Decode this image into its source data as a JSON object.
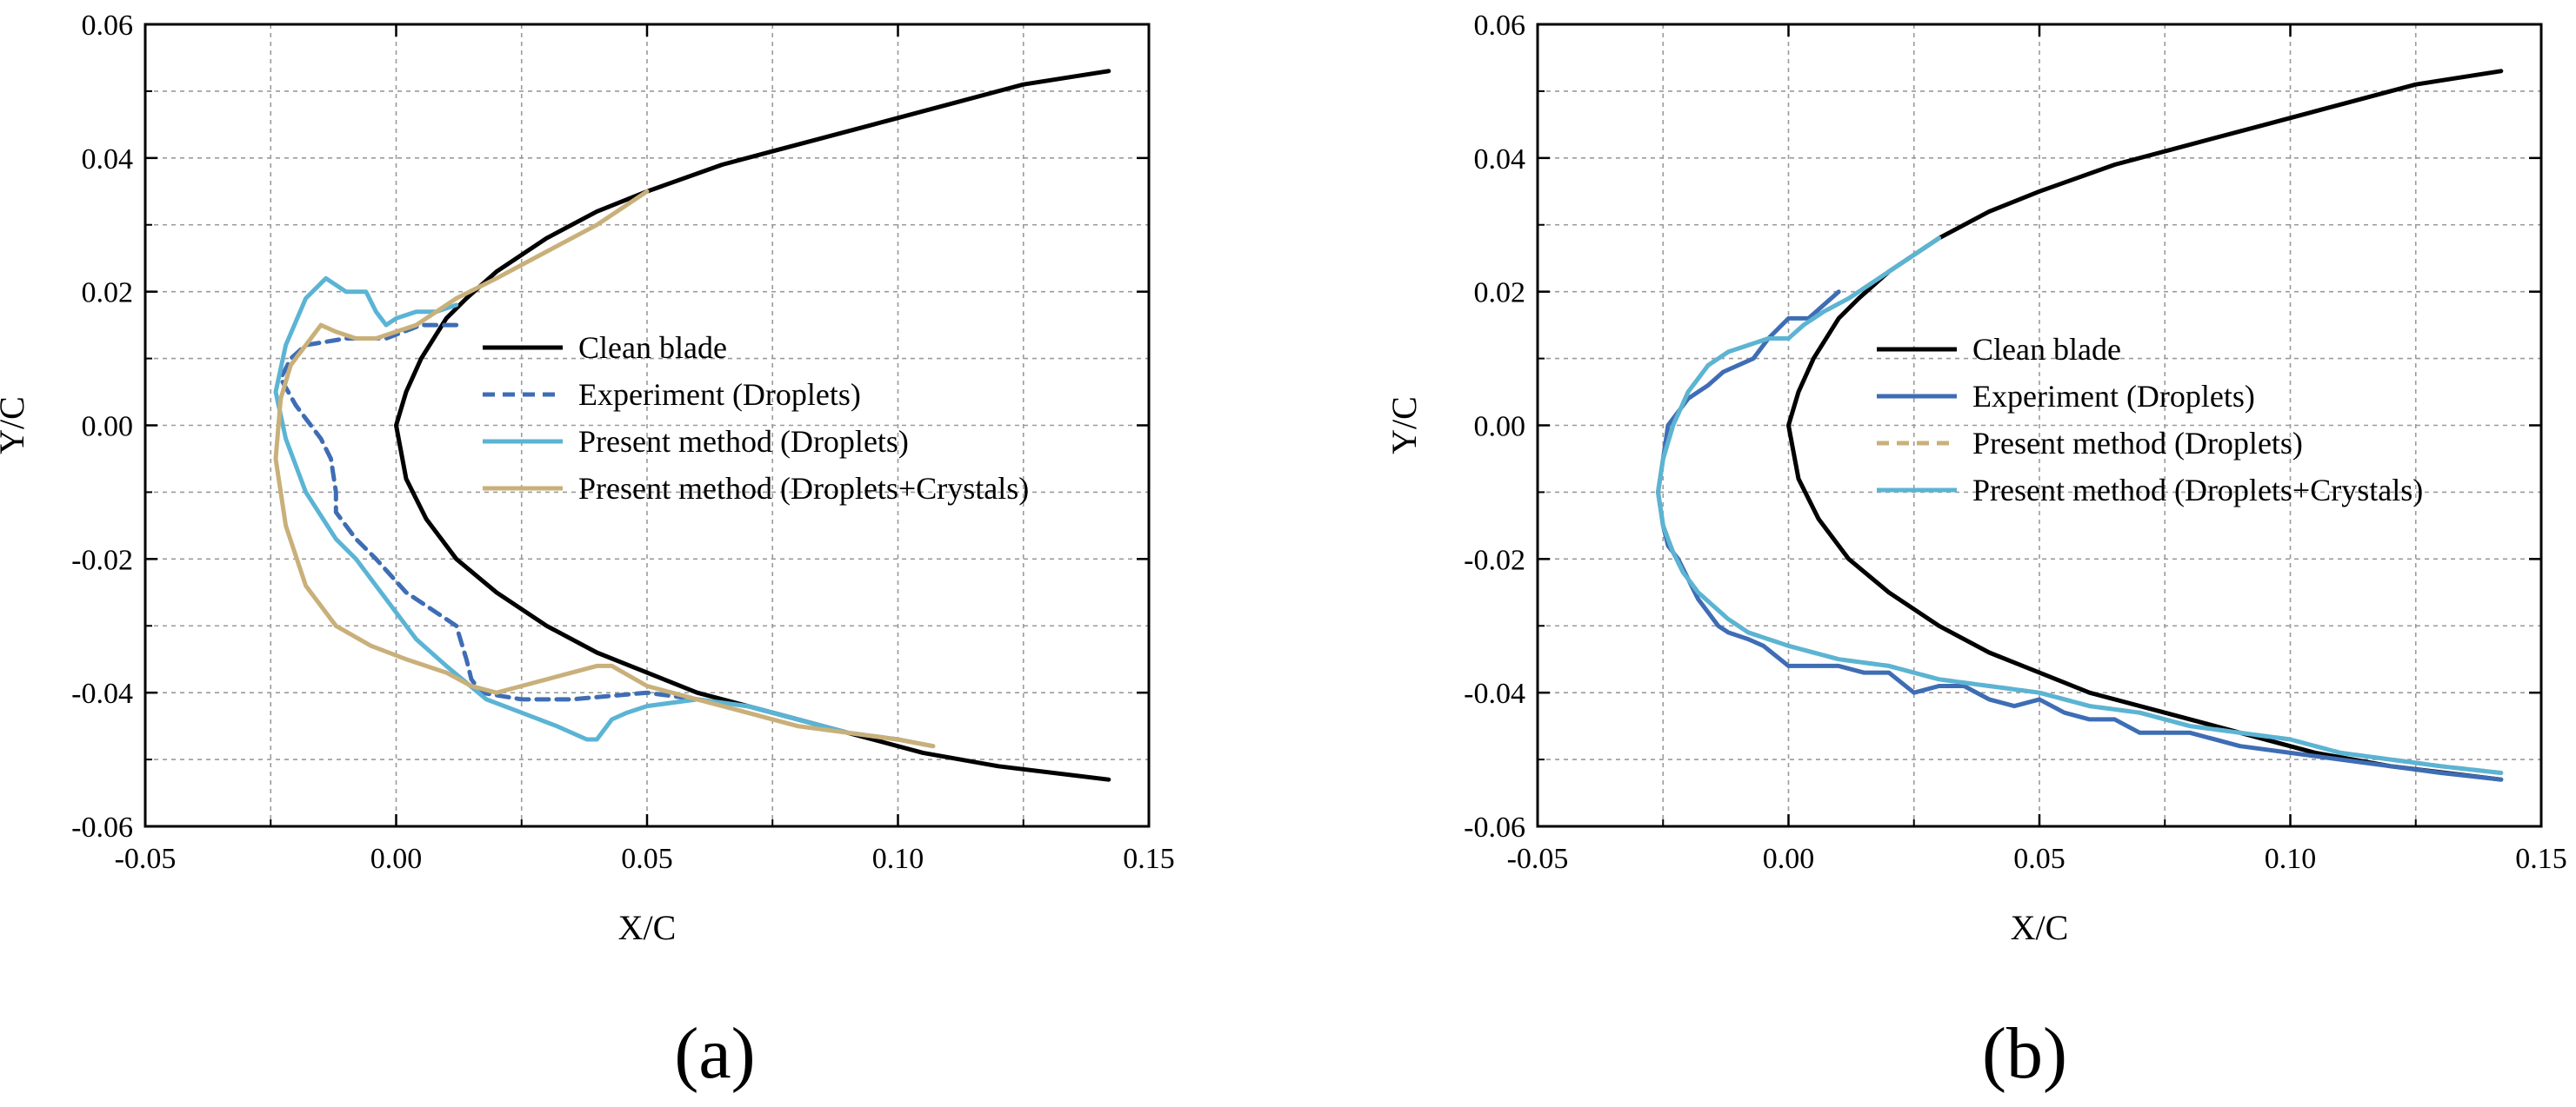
{
  "chart_data": [
    {
      "type": "line",
      "panel_label": "(a)",
      "xlabel": "X/C",
      "ylabel": "Y/C",
      "xlim": [
        -0.05,
        0.15
      ],
      "ylim": [
        -0.06,
        0.06
      ],
      "xticks": [
        "-0.05",
        "0.00",
        "0.05",
        "0.10",
        "0.15"
      ],
      "yticks": [
        "-0.06",
        "-0.04",
        "-0.02",
        "0.00",
        "0.02",
        "0.04",
        "0.06"
      ],
      "grid": "dashed",
      "legend_position": "center-right",
      "series": [
        {
          "name": "Clean blade",
          "color": "#000000",
          "dash": "solid",
          "x": [
            0.142,
            0.125,
            0.11,
            0.095,
            0.08,
            0.065,
            0.05,
            0.04,
            0.03,
            0.02,
            0.014,
            0.01,
            0.005,
            0.002,
            0.0,
            0.002,
            0.006,
            0.012,
            0.02,
            0.03,
            0.04,
            0.05,
            0.06,
            0.075,
            0.09,
            0.105,
            0.12,
            0.142
          ],
          "y": [
            0.053,
            0.051,
            0.048,
            0.045,
            0.042,
            0.039,
            0.035,
            0.032,
            0.028,
            0.023,
            0.019,
            0.016,
            0.01,
            0.005,
            0.0,
            -0.008,
            -0.014,
            -0.02,
            -0.025,
            -0.03,
            -0.034,
            -0.037,
            -0.04,
            -0.043,
            -0.046,
            -0.049,
            -0.051,
            -0.053
          ]
        },
        {
          "name": "Experiment (Droplets)",
          "color": "#3e6db5",
          "dash": "dashed",
          "x": [
            0.012,
            0.005,
            -0.002,
            -0.01,
            -0.018,
            -0.021,
            -0.023,
            -0.02,
            -0.015,
            -0.013,
            -0.012,
            -0.012,
            -0.008,
            -0.004,
            0.002,
            0.008,
            0.012,
            0.014,
            0.015,
            0.017,
            0.025,
            0.035,
            0.05,
            0.06,
            0.07,
            0.08,
            0.09,
            0.1
          ],
          "y": [
            0.015,
            0.015,
            0.013,
            0.013,
            0.012,
            0.01,
            0.007,
            0.003,
            -0.002,
            -0.005,
            -0.01,
            -0.013,
            -0.017,
            -0.02,
            -0.025,
            -0.028,
            -0.03,
            -0.035,
            -0.038,
            -0.04,
            -0.041,
            -0.041,
            -0.04,
            -0.041,
            -0.042,
            -0.044,
            -0.046,
            -0.047
          ]
        },
        {
          "name": "Present method (Droplets)",
          "color": "#5bb4d4",
          "dash": "solid",
          "x": [
            0.012,
            0.008,
            0.004,
            0.0,
            -0.002,
            -0.004,
            -0.006,
            -0.008,
            -0.01,
            -0.014,
            -0.018,
            -0.022,
            -0.024,
            -0.022,
            -0.018,
            -0.012,
            -0.008,
            -0.004,
            0.0,
            0.004,
            0.01,
            0.018,
            0.025,
            0.032,
            0.038,
            0.04,
            0.043,
            0.046,
            0.05,
            0.06,
            0.07,
            0.08,
            0.09,
            0.1,
            0.107
          ],
          "y": [
            0.018,
            0.017,
            0.017,
            0.016,
            0.015,
            0.017,
            0.02,
            0.02,
            0.02,
            0.022,
            0.019,
            0.012,
            0.005,
            -0.002,
            -0.01,
            -0.017,
            -0.02,
            -0.024,
            -0.028,
            -0.032,
            -0.036,
            -0.041,
            -0.043,
            -0.045,
            -0.047,
            -0.047,
            -0.044,
            -0.043,
            -0.042,
            -0.041,
            -0.042,
            -0.044,
            -0.046,
            -0.047,
            -0.048
          ]
        },
        {
          "name": "Present method (Droplets+Crystals)",
          "color": "#c9b07a",
          "dash": "solid",
          "x": [
            0.05,
            0.04,
            0.03,
            0.02,
            0.012,
            0.008,
            0.004,
            0.0,
            -0.004,
            -0.008,
            -0.012,
            -0.015,
            -0.018,
            -0.021,
            -0.023,
            -0.024,
            -0.022,
            -0.018,
            -0.012,
            -0.005,
            0.002,
            0.01,
            0.015,
            0.02,
            0.025,
            0.03,
            0.035,
            0.04,
            0.043,
            0.05,
            0.06,
            0.07,
            0.08,
            0.09,
            0.1,
            0.107
          ],
          "y": [
            0.035,
            0.03,
            0.026,
            0.022,
            0.019,
            0.017,
            0.015,
            0.014,
            0.013,
            0.013,
            0.014,
            0.015,
            0.012,
            0.009,
            0.004,
            -0.005,
            -0.015,
            -0.024,
            -0.03,
            -0.033,
            -0.035,
            -0.037,
            -0.039,
            -0.04,
            -0.039,
            -0.038,
            -0.037,
            -0.036,
            -0.036,
            -0.039,
            -0.041,
            -0.043,
            -0.045,
            -0.046,
            -0.047,
            -0.048
          ]
        }
      ]
    },
    {
      "type": "line",
      "panel_label": "(b)",
      "xlabel": "X/C",
      "ylabel": "Y/C",
      "xlim": [
        -0.05,
        0.15
      ],
      "ylim": [
        -0.06,
        0.06
      ],
      "xticks": [
        "-0.05",
        "0.00",
        "0.05",
        "0.10",
        "0.15"
      ],
      "yticks": [
        "-0.06",
        "-0.04",
        "-0.02",
        "0.00",
        "0.02",
        "0.04",
        "0.06"
      ],
      "grid": "dashed",
      "legend_position": "center-right",
      "series": [
        {
          "name": "Clean blade",
          "color": "#000000",
          "dash": "solid",
          "x": [
            0.142,
            0.125,
            0.11,
            0.095,
            0.08,
            0.065,
            0.05,
            0.04,
            0.03,
            0.02,
            0.014,
            0.01,
            0.005,
            0.002,
            0.0,
            0.002,
            0.006,
            0.012,
            0.02,
            0.03,
            0.04,
            0.05,
            0.06,
            0.075,
            0.09,
            0.105,
            0.12,
            0.142
          ],
          "y": [
            0.053,
            0.051,
            0.048,
            0.045,
            0.042,
            0.039,
            0.035,
            0.032,
            0.028,
            0.023,
            0.019,
            0.016,
            0.01,
            0.005,
            0.0,
            -0.008,
            -0.014,
            -0.02,
            -0.025,
            -0.03,
            -0.034,
            -0.037,
            -0.04,
            -0.043,
            -0.046,
            -0.049,
            -0.051,
            -0.053
          ]
        },
        {
          "name": "Experiment (Droplets)",
          "color": "#3e6db5",
          "dash": "solid",
          "x": [
            0.01,
            0.007,
            0.004,
            0.0,
            -0.004,
            -0.007,
            -0.01,
            -0.013,
            -0.016,
            -0.02,
            -0.022,
            -0.024,
            -0.025,
            -0.026,
            -0.025,
            -0.024,
            -0.022,
            -0.02,
            -0.018,
            -0.016,
            -0.014,
            -0.012,
            -0.008,
            -0.005,
            0.0,
            0.005,
            0.01,
            0.015,
            0.02,
            0.025,
            0.03,
            0.035,
            0.04,
            0.045,
            0.05,
            0.055,
            0.06,
            0.065,
            0.07,
            0.08,
            0.09,
            0.1,
            0.11,
            0.12,
            0.13,
            0.142
          ],
          "y": [
            0.02,
            0.018,
            0.016,
            0.016,
            0.013,
            0.01,
            0.009,
            0.008,
            0.006,
            0.004,
            0.002,
            0.0,
            -0.005,
            -0.01,
            -0.015,
            -0.018,
            -0.02,
            -0.023,
            -0.026,
            -0.028,
            -0.03,
            -0.031,
            -0.032,
            -0.033,
            -0.036,
            -0.036,
            -0.036,
            -0.037,
            -0.037,
            -0.04,
            -0.039,
            -0.039,
            -0.041,
            -0.042,
            -0.041,
            -0.043,
            -0.044,
            -0.044,
            -0.046,
            -0.046,
            -0.048,
            -0.049,
            -0.05,
            -0.051,
            -0.052,
            -0.053
          ]
        },
        {
          "name": "Present method (Droplets)",
          "color": "#c9b07a",
          "dash": "dashed",
          "x": [
            0.03,
            0.02,
            0.012,
            0.007,
            0.003,
            0.0,
            -0.004,
            -0.008,
            -0.012,
            -0.016,
            -0.02,
            -0.023,
            -0.025,
            -0.026,
            -0.025,
            -0.023,
            -0.021,
            -0.018,
            -0.015,
            -0.012,
            -0.008,
            -0.004,
            0.0,
            0.01,
            0.02,
            0.03,
            0.04,
            0.05,
            0.06,
            0.07,
            0.08,
            0.09,
            0.1,
            0.11,
            0.12,
            0.13,
            0.142
          ],
          "y": [
            0.028,
            0.023,
            0.019,
            0.017,
            0.015,
            0.013,
            0.013,
            0.012,
            0.011,
            0.009,
            0.005,
            0.0,
            -0.005,
            -0.01,
            -0.015,
            -0.019,
            -0.022,
            -0.025,
            -0.027,
            -0.029,
            -0.031,
            -0.032,
            -0.033,
            -0.035,
            -0.036,
            -0.038,
            -0.039,
            -0.04,
            -0.042,
            -0.043,
            -0.045,
            -0.046,
            -0.047,
            -0.049,
            -0.05,
            -0.051,
            -0.052
          ]
        },
        {
          "name": "Present method (Droplets+Crystals)",
          "color": "#5bb4d4",
          "dash": "solid",
          "x": [
            0.03,
            0.02,
            0.012,
            0.007,
            0.003,
            0.0,
            -0.004,
            -0.008,
            -0.012,
            -0.016,
            -0.02,
            -0.023,
            -0.025,
            -0.026,
            -0.025,
            -0.023,
            -0.021,
            -0.018,
            -0.015,
            -0.012,
            -0.008,
            -0.004,
            0.0,
            0.01,
            0.02,
            0.03,
            0.04,
            0.05,
            0.06,
            0.07,
            0.08,
            0.09,
            0.1,
            0.11,
            0.12,
            0.13,
            0.142
          ],
          "y": [
            0.028,
            0.023,
            0.019,
            0.017,
            0.015,
            0.013,
            0.013,
            0.012,
            0.011,
            0.009,
            0.005,
            0.0,
            -0.005,
            -0.01,
            -0.015,
            -0.019,
            -0.022,
            -0.025,
            -0.027,
            -0.029,
            -0.031,
            -0.032,
            -0.033,
            -0.035,
            -0.036,
            -0.038,
            -0.039,
            -0.04,
            -0.042,
            -0.043,
            -0.045,
            -0.046,
            -0.047,
            -0.049,
            -0.05,
            -0.051,
            -0.052
          ]
        }
      ]
    }
  ]
}
